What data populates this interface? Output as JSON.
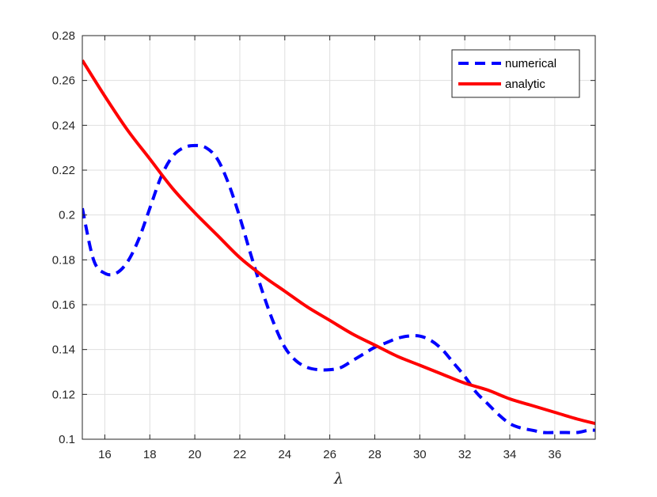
{
  "chart_data": {
    "type": "line",
    "title": "",
    "xlabel": "λ",
    "ylabel": "",
    "xlim": [
      15,
      37.8
    ],
    "ylim": [
      0.1,
      0.28
    ],
    "grid": true,
    "legend_position": "top-right",
    "x_ticks": [
      16,
      18,
      20,
      22,
      24,
      26,
      28,
      30,
      32,
      34,
      36
    ],
    "x_tick_labels": [
      "16",
      "18",
      "20",
      "22",
      "24",
      "26",
      "28",
      "30",
      "32",
      "34",
      "36"
    ],
    "y_ticks": [
      0.1,
      0.12,
      0.14,
      0.16,
      0.18,
      0.2,
      0.22,
      0.24,
      0.26,
      0.28
    ],
    "y_tick_labels": [
      "0.1",
      "0.12",
      "0.14",
      "0.16",
      "0.18",
      "0.2",
      "0.22",
      "0.24",
      "0.26",
      "0.28"
    ],
    "series": [
      {
        "name": "numerical",
        "color": "#0000ff",
        "style": "dashed",
        "x": [
          15,
          15.5,
          16,
          16.5,
          17,
          17.5,
          18,
          18.5,
          19,
          19.5,
          20,
          20.5,
          21,
          21.5,
          22,
          22.5,
          23,
          23.5,
          24,
          24.5,
          25,
          25.5,
          26,
          26.5,
          27,
          27.5,
          28,
          28.5,
          29,
          29.5,
          30,
          30.5,
          31,
          31.5,
          32,
          32.5,
          33,
          33.5,
          34,
          34.5,
          35,
          35.5,
          36,
          36.5,
          37,
          37.5,
          37.8
        ],
        "y": [
          0.203,
          0.18,
          0.174,
          0.174,
          0.179,
          0.189,
          0.203,
          0.217,
          0.226,
          0.23,
          0.231,
          0.23,
          0.225,
          0.214,
          0.199,
          0.182,
          0.166,
          0.152,
          0.141,
          0.135,
          0.132,
          0.131,
          0.131,
          0.132,
          0.135,
          0.138,
          0.141,
          0.143,
          0.145,
          0.146,
          0.146,
          0.144,
          0.14,
          0.134,
          0.128,
          0.121,
          0.116,
          0.111,
          0.107,
          0.105,
          0.104,
          0.103,
          0.103,
          0.103,
          0.103,
          0.104,
          0.104
        ]
      },
      {
        "name": "analytic",
        "color": "#ff0000",
        "style": "solid",
        "x": [
          15,
          16,
          17,
          18,
          19,
          20,
          21,
          22,
          23,
          24,
          25,
          26,
          27,
          28,
          29,
          30,
          31,
          32,
          33,
          34,
          35,
          36,
          37,
          37.8
        ],
        "y": [
          0.269,
          0.253,
          0.238,
          0.225,
          0.212,
          0.201,
          0.191,
          0.181,
          0.173,
          0.166,
          0.159,
          0.153,
          0.147,
          0.142,
          0.137,
          0.133,
          0.129,
          0.125,
          0.122,
          0.118,
          0.115,
          0.112,
          0.109,
          0.107
        ]
      }
    ]
  }
}
